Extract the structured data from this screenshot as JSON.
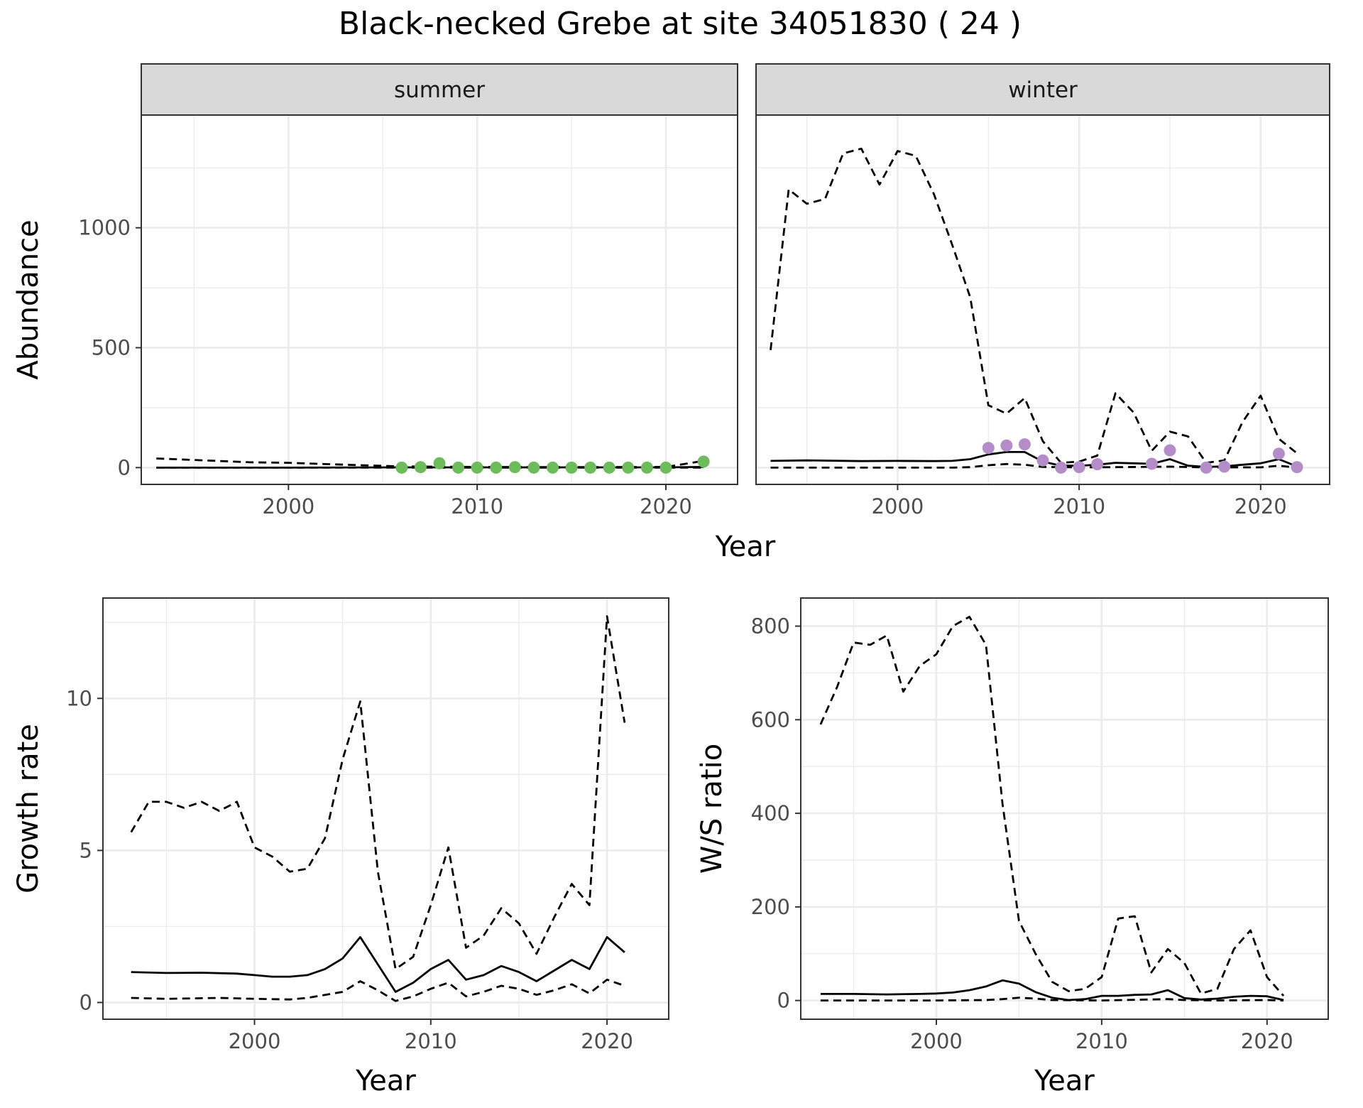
{
  "title": "Black-necked Grebe at site 34051830 ( 24 )",
  "colors": {
    "summer_points": "#6dbb5a",
    "winter_points": "#b38cc8",
    "line": "#000000",
    "strip_fill": "#d9d9d9",
    "grid": "#ebebeb"
  },
  "chart_data": [
    {
      "id": "abundance-summer",
      "type": "line",
      "facet": "summer",
      "xlabel": "Year",
      "ylabel": "Abundance",
      "xlim": [
        1992.2,
        2023.8
      ],
      "ylim": [
        -70,
        1470
      ],
      "xticks": [
        2000,
        2010,
        2020
      ],
      "yticks": [
        0,
        500,
        1000
      ],
      "grid": true,
      "series": [
        {
          "style": "dashed",
          "x": [
            1993,
            1995,
            1998,
            2000,
            2003,
            2006,
            2010,
            2015,
            2020,
            2022
          ],
          "y": [
            38,
            32,
            22,
            20,
            12,
            5,
            3,
            2,
            3,
            28
          ]
        },
        {
          "style": "solid",
          "x": [
            1993,
            2000,
            2006,
            2010,
            2015,
            2020,
            2022
          ],
          "y": [
            0,
            0,
            1,
            1,
            1,
            1,
            3
          ]
        },
        {
          "style": "dashed",
          "x": [
            1993,
            2022
          ],
          "y": [
            0,
            0
          ]
        }
      ],
      "points": {
        "x": [
          2006,
          2007,
          2008,
          2009,
          2010,
          2011,
          2012,
          2013,
          2014,
          2015,
          2016,
          2017,
          2018,
          2019,
          2020,
          2022
        ],
        "y": [
          0,
          2,
          18,
          0,
          0,
          0,
          2,
          0,
          0,
          0,
          0,
          0,
          0,
          0,
          0,
          25
        ]
      }
    },
    {
      "id": "abundance-winter",
      "type": "line",
      "facet": "winter",
      "xlabel": "Year",
      "ylabel": "",
      "xlim": [
        1992.2,
        2023.8
      ],
      "ylim": [
        -70,
        1470
      ],
      "xticks": [
        2000,
        2010,
        2020
      ],
      "yticks": [
        0,
        500,
        1000
      ],
      "grid": true,
      "series": [
        {
          "style": "dashed",
          "x": [
            1993,
            1994,
            1995,
            1996,
            1997,
            1998,
            1999,
            2000,
            2001,
            2002,
            2003,
            2004,
            2005,
            2006,
            2007,
            2008,
            2009,
            2010,
            2011,
            2012,
            2013,
            2014,
            2015,
            2016,
            2017,
            2018,
            2019,
            2020,
            2021,
            2022
          ],
          "y": [
            490,
            1160,
            1100,
            1120,
            1310,
            1330,
            1180,
            1320,
            1300,
            1140,
            930,
            710,
            260,
            225,
            290,
            110,
            20,
            25,
            50,
            310,
            230,
            70,
            150,
            130,
            20,
            30,
            190,
            300,
            120,
            60
          ]
        },
        {
          "style": "solid",
          "x": [
            1993,
            1995,
            1998,
            2000,
            2002,
            2003,
            2004,
            2005,
            2006,
            2007,
            2008,
            2009,
            2010,
            2011,
            2012,
            2013,
            2014,
            2015,
            2016,
            2017,
            2018,
            2019,
            2020,
            2021,
            2022
          ],
          "y": [
            28,
            30,
            27,
            28,
            27,
            28,
            35,
            55,
            65,
            65,
            25,
            8,
            8,
            12,
            20,
            18,
            16,
            35,
            8,
            3,
            5,
            12,
            18,
            35,
            5
          ]
        },
        {
          "style": "dashed",
          "x": [
            1993,
            1998,
            2003,
            2004,
            2005,
            2006,
            2007,
            2008,
            2010,
            2012,
            2015,
            2017,
            2020,
            2021,
            2022
          ],
          "y": [
            0,
            0,
            0,
            2,
            10,
            15,
            12,
            3,
            1,
            2,
            4,
            1,
            1,
            8,
            0
          ]
        }
      ],
      "points": {
        "x": [
          2005,
          2006,
          2007,
          2008,
          2009,
          2010,
          2011,
          2014,
          2015,
          2017,
          2018,
          2021,
          2022
        ],
        "y": [
          82,
          92,
          97,
          30,
          0,
          2,
          14,
          16,
          72,
          0,
          4,
          58,
          2
        ]
      }
    },
    {
      "id": "growth-rate",
      "type": "line",
      "xlabel": "Year",
      "ylabel": "Growth rate",
      "xlim": [
        1991.4,
        2023.5
      ],
      "ylim": [
        -0.55,
        13.3
      ],
      "xticks": [
        2000,
        2010,
        2020
      ],
      "yticks": [
        0,
        5,
        10
      ],
      "grid": true,
      "series": [
        {
          "style": "dashed",
          "x": [
            1993,
            1994,
            1995,
            1996,
            1997,
            1998,
            1999,
            2000,
            2001,
            2002,
            2003,
            2004,
            2005,
            2006,
            2007,
            2008,
            2009,
            2010,
            2011,
            2012,
            2013,
            2014,
            2015,
            2016,
            2017,
            2018,
            2019,
            2020,
            2021
          ],
          "y": [
            5.6,
            6.6,
            6.6,
            6.4,
            6.6,
            6.3,
            6.6,
            5.1,
            4.8,
            4.3,
            4.4,
            5.4,
            8.0,
            9.9,
            4.3,
            1.1,
            1.5,
            3.2,
            5.1,
            1.8,
            2.2,
            3.1,
            2.6,
            1.6,
            2.8,
            3.9,
            3.2,
            12.7,
            9.2
          ]
        },
        {
          "style": "solid",
          "x": [
            1993,
            1995,
            1997,
            1999,
            2000,
            2001,
            2002,
            2003,
            2004,
            2005,
            2006,
            2007,
            2008,
            2009,
            2010,
            2011,
            2012,
            2013,
            2014,
            2015,
            2016,
            2017,
            2018,
            2019,
            2020,
            2021
          ],
          "y": [
            1.0,
            0.97,
            0.98,
            0.95,
            0.9,
            0.85,
            0.85,
            0.9,
            1.1,
            1.45,
            2.15,
            1.25,
            0.35,
            0.65,
            1.1,
            1.4,
            0.75,
            0.9,
            1.2,
            1.0,
            0.7,
            1.05,
            1.4,
            1.1,
            2.15,
            1.65
          ]
        },
        {
          "style": "dashed",
          "x": [
            1993,
            1995,
            1998,
            2000,
            2002,
            2003,
            2004,
            2005,
            2006,
            2007,
            2008,
            2009,
            2010,
            2011,
            2012,
            2013,
            2014,
            2015,
            2016,
            2017,
            2018,
            2019,
            2020,
            2021
          ],
          "y": [
            0.15,
            0.12,
            0.15,
            0.12,
            0.1,
            0.15,
            0.25,
            0.35,
            0.7,
            0.4,
            0.05,
            0.2,
            0.45,
            0.65,
            0.2,
            0.35,
            0.55,
            0.45,
            0.25,
            0.4,
            0.6,
            0.3,
            0.75,
            0.55
          ]
        }
      ]
    },
    {
      "id": "ws-ratio",
      "type": "line",
      "xlabel": "Year",
      "ylabel": "W/S ratio",
      "xlim": [
        1991.8,
        2023.7
      ],
      "ylim": [
        -40,
        860
      ],
      "xticks": [
        2000,
        2010,
        2020
      ],
      "yticks": [
        0,
        200,
        400,
        600,
        800
      ],
      "grid": true,
      "series": [
        {
          "style": "dashed",
          "x": [
            1993,
            1994,
            1995,
            1996,
            1997,
            1998,
            1999,
            2000,
            2001,
            2002,
            2003,
            2004,
            2005,
            2006,
            2007,
            2008,
            2009,
            2010,
            2011,
            2012,
            2013,
            2014,
            2015,
            2016,
            2017,
            2018,
            2019,
            2020,
            2021
          ],
          "y": [
            590,
            670,
            765,
            760,
            780,
            660,
            715,
            740,
            800,
            820,
            760,
            420,
            170,
            100,
            40,
            20,
            25,
            50,
            175,
            180,
            60,
            110,
            80,
            15,
            25,
            110,
            150,
            50,
            10
          ]
        },
        {
          "style": "solid",
          "x": [
            1993,
            1995,
            1997,
            1999,
            2000,
            2001,
            2002,
            2003,
            2004,
            2005,
            2006,
            2007,
            2008,
            2009,
            2010,
            2011,
            2012,
            2013,
            2014,
            2015,
            2016,
            2017,
            2018,
            2019,
            2020,
            2021
          ],
          "y": [
            14,
            14,
            13,
            14,
            15,
            17,
            22,
            30,
            43,
            36,
            18,
            6,
            1,
            3,
            10,
            10,
            12,
            13,
            22,
            5,
            2,
            4,
            8,
            10,
            9,
            1
          ]
        },
        {
          "style": "dashed",
          "x": [
            1993,
            2000,
            2003,
            2004,
            2005,
            2006,
            2007,
            2010,
            2014,
            2015,
            2017,
            2020,
            2021
          ],
          "y": [
            0,
            0,
            1,
            3,
            6,
            4,
            1,
            0,
            3,
            1,
            0,
            1,
            0
          ]
        }
      ]
    }
  ]
}
